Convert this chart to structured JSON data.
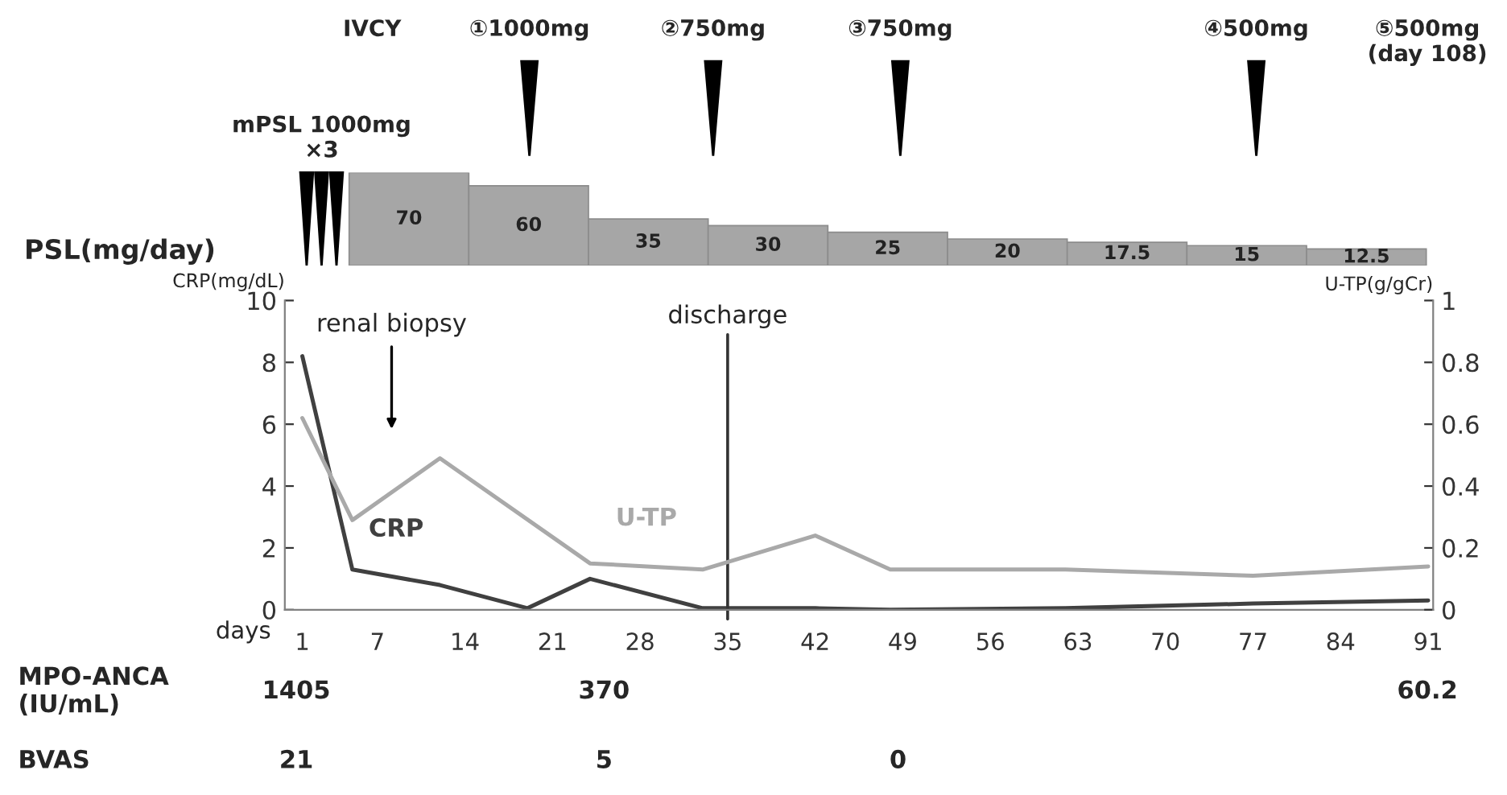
{
  "chart_data": [
    {
      "type": "bar",
      "ylabel": "PSL(mg/day)",
      "categories": [
        null,
        null,
        null,
        null,
        null,
        null,
        null,
        null,
        null
      ],
      "values": [
        70,
        60,
        35,
        30,
        25,
        20,
        17.5,
        15,
        12.5
      ],
      "color": "#a6a6a6",
      "data_labels": true,
      "tick_labels": false,
      "annotations": [
        "IVCY",
        "①1000mg",
        "②750mg",
        "③750mg",
        "④500mg",
        "⑤500mg\n(day 108)",
        "mPSL 1000mg\n×3"
      ]
    },
    {
      "type": "line",
      "xlabel": "days",
      "ylabel": "CRP(mg/dL)",
      "y2label": "U-TP(g/gCr)",
      "xlim": [
        -0.4,
        91.4
      ],
      "xticks": [
        1,
        7,
        14,
        21,
        28,
        35,
        42,
        49,
        56,
        63,
        70,
        77,
        84,
        91
      ],
      "ylim": [
        0,
        10
      ],
      "yticks": [
        0,
        2,
        4,
        6,
        8,
        10
      ],
      "y2lim": [
        0,
        1
      ],
      "y2ticks": [
        0,
        0.2,
        0.4,
        0.6,
        0.8,
        1
      ],
      "grid": false,
      "legend": false,
      "series": [
        {
          "name": "CRP",
          "color": "#404040",
          "x": [
            1,
            5,
            12,
            19,
            24,
            33,
            42,
            48,
            62,
            77,
            91
          ],
          "values": [
            8.2,
            1.3,
            0.8,
            0.05,
            1.0,
            0.05,
            0.05,
            0,
            0.05,
            0.2,
            0.3
          ]
        },
        {
          "name": "U-TP",
          "color": "#a9a9a9",
          "axis": "y2",
          "x": [
            1,
            5,
            12,
            24,
            33,
            42,
            48,
            62,
            77,
            91
          ],
          "values": [
            0.62,
            0.29,
            0.49,
            0.15,
            0.13,
            0.24,
            0.13,
            0.13,
            0.11,
            0.14
          ]
        }
      ],
      "ref_lines": [
        {
          "axis": "x",
          "value": 35,
          "label": "discharge"
        }
      ],
      "annotations": [
        "renal biopsy",
        "MPO-ANCA\n(IU/mL)",
        "BVAS",
        "1405",
        "370",
        "60.2",
        "21",
        "5",
        "0"
      ]
    }
  ]
}
